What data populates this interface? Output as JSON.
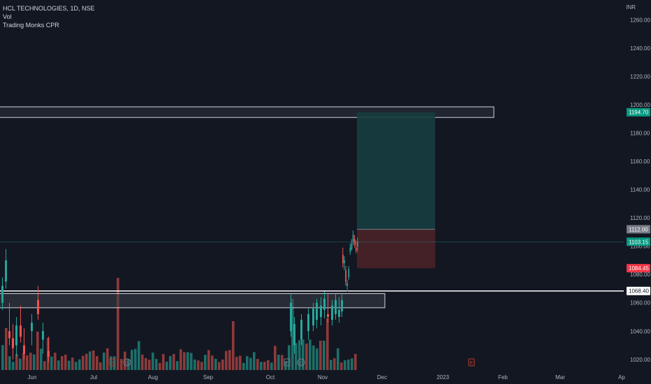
{
  "legend": {
    "symbol": "HCL TECHNOLOGIES, 1D, NSE",
    "volume": "Vol",
    "indicator": "Trading Monks CPR"
  },
  "axis": {
    "currency": "INR"
  },
  "colors": {
    "background": "#131722",
    "up": "#26a69a",
    "down": "#ef5350",
    "vol_up": "#1d6f69",
    "vol_down": "#8f3a3a",
    "target_zone": "#163d3f",
    "stop_zone": "#4a2228",
    "box_fill": "#3b3e47",
    "grid_axis_text": "#b2b5be",
    "earnings": "#c0392b"
  },
  "chart_data": {
    "type": "candlestick",
    "y_axis": {
      "ticks": [
        1260,
        1240,
        1220,
        1200,
        1180,
        1160,
        1140,
        1120,
        1100,
        1080,
        1060,
        1040,
        1020
      ],
      "tick_labels": [
        "1260.00",
        "1240.00",
        "1220.00",
        "1200.00",
        "1180.00",
        "1160.00",
        "1140.00",
        "1120.00",
        "1100.00",
        "1080.00",
        "1060.00",
        "1040.00",
        "1020.00"
      ],
      "range": [
        1012,
        1274
      ]
    },
    "x_axis": {
      "labels": [
        "Jun",
        "Jul",
        "Aug",
        "Sep",
        "Oct",
        "Nov",
        "Dec",
        "2023",
        "Feb",
        "Mar",
        "Ap"
      ]
    },
    "price_labels": [
      {
        "value": "1194.70",
        "price": 1194.7,
        "style": "green"
      },
      {
        "value": "1112.00",
        "price": 1112.0,
        "style": "gray"
      },
      {
        "value": "1103.15",
        "price": 1103.15,
        "style": "green"
      },
      {
        "value": "1084.45",
        "price": 1084.45,
        "style": "red"
      },
      {
        "value": "1068.40",
        "price": 1068.4,
        "style": "white"
      }
    ],
    "zones": [
      {
        "name": "resistance-box",
        "top": 1198.5,
        "bottom": 1191.0,
        "from_index": 0,
        "to": "Jan end"
      },
      {
        "name": "support-box",
        "top": 1066.5,
        "bottom": 1056.5,
        "from_index": 0,
        "to": "Dec start"
      }
    ],
    "horizontal_line": 1068.4,
    "position": {
      "entry": 1112.0,
      "target": 1194.7,
      "stop": 1084.45
    },
    "events": [
      {
        "type": "E",
        "month": "Jul",
        "color": "red"
      },
      {
        "type": "D",
        "month": "Jul",
        "color": "gray"
      },
      {
        "type": "E",
        "month": "Oct",
        "color": "gray"
      },
      {
        "type": "D",
        "month": "Oct",
        "color": "gray"
      },
      {
        "type": "E",
        "month": "Jan",
        "color": "red"
      }
    ],
    "candles_visible": [
      {
        "o": 1094,
        "h": 1099,
        "l": 1085,
        "c": 1088
      },
      {
        "o": 1088,
        "h": 1093,
        "l": 1083,
        "c": 1090
      },
      {
        "o": 1083,
        "h": 1086,
        "l": 1072,
        "c": 1075
      },
      {
        "o": 1072,
        "h": 1076,
        "l": 1068,
        "c": 1074
      },
      {
        "o": 1078,
        "h": 1086,
        "l": 1076,
        "c": 1084
      },
      {
        "o": 1096,
        "h": 1102,
        "l": 1094,
        "c": 1099
      },
      {
        "o": 1098,
        "h": 1105,
        "l": 1097,
        "c": 1102
      },
      {
        "o": 1103,
        "h": 1111,
        "l": 1101,
        "c": 1108
      },
      {
        "o": 1105,
        "h": 1108,
        "l": 1099,
        "c": 1101
      },
      {
        "o": 1099,
        "h": 1104,
        "l": 1095,
        "c": 1097
      },
      {
        "o": 1100,
        "h": 1106,
        "l": 1096,
        "c": 1103.15
      }
    ]
  }
}
